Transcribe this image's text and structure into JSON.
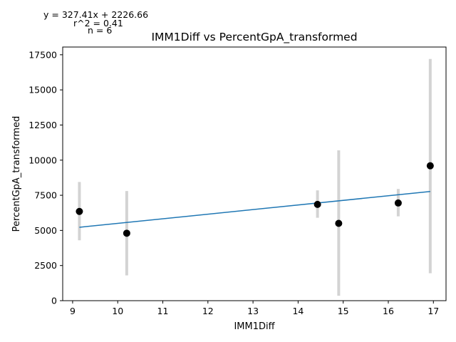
{
  "chart_data": {
    "type": "scatter",
    "title": "IMM1Diff vs PercentGpA_transformed",
    "xlabel": "IMM1Diff",
    "ylabel": "PercentGpA_transformed",
    "xlim": [
      8.78,
      17.28
    ],
    "ylim": [
      0,
      18050
    ],
    "x_ticks": [
      9,
      10,
      11,
      12,
      13,
      14,
      15,
      16,
      17
    ],
    "y_ticks": [
      0,
      2500,
      5000,
      7500,
      10000,
      12500,
      15000,
      17500
    ],
    "grid": false,
    "points": [
      {
        "x": 9.15,
        "y": 6350,
        "err_low": 4300,
        "err_high": 8450
      },
      {
        "x": 10.2,
        "y": 4800,
        "err_low": 1800,
        "err_high": 7800
      },
      {
        "x": 14.43,
        "y": 6850,
        "err_low": 5900,
        "err_high": 7850
      },
      {
        "x": 14.9,
        "y": 5500,
        "err_low": 350,
        "err_high": 10700
      },
      {
        "x": 16.22,
        "y": 6950,
        "err_low": 6000,
        "err_high": 7950
      },
      {
        "x": 16.93,
        "y": 9600,
        "err_low": 1950,
        "err_high": 17200
      }
    ],
    "fit": {
      "slope": 327.41,
      "intercept": 2226.66,
      "x_range": [
        9.15,
        16.93
      ]
    },
    "colors": {
      "points": "#000000",
      "error_bars": "#d3d3d3",
      "fit_line": "#1f77b4"
    },
    "annotations": {
      "equation": "y = 327.41x + 2226.66",
      "r2": "r^2 = 0.41",
      "n": "n = 6"
    }
  }
}
